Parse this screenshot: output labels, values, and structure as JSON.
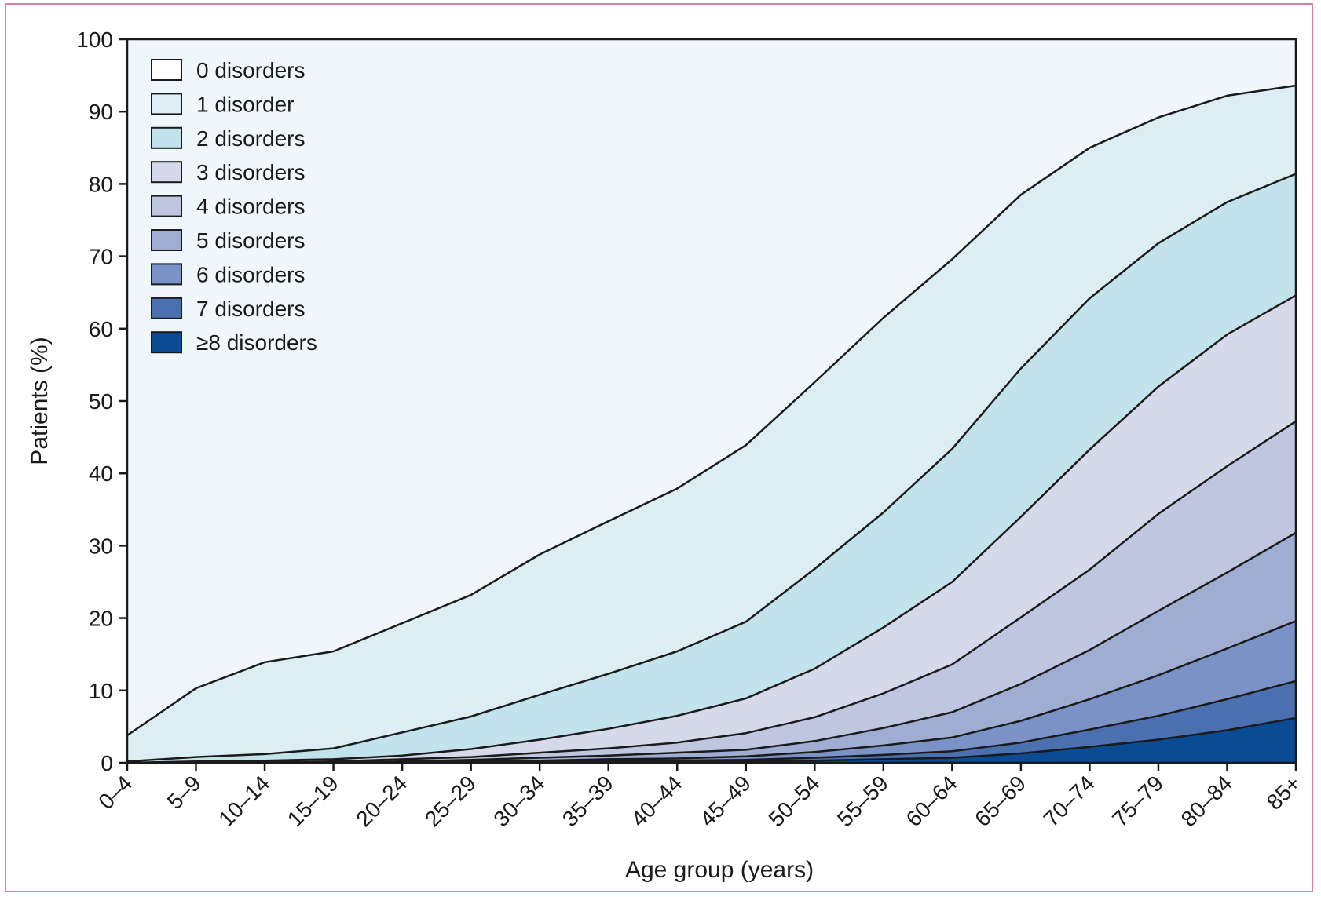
{
  "chart_data": {
    "type": "area",
    "stacked": true,
    "xlabel": "Age group (years)",
    "ylabel": "Patients (%)",
    "ylim": [
      0,
      100
    ],
    "yticks": [
      0,
      10,
      20,
      30,
      40,
      50,
      60,
      70,
      80,
      90,
      100
    ],
    "categories": [
      "0–4",
      "5–9",
      "10–14",
      "15–19",
      "20–24",
      "25–29",
      "30–34",
      "35–39",
      "40–44",
      "45–49",
      "50–54",
      "55–59",
      "60–64",
      "65–69",
      "70–74",
      "75–79",
      "80–84",
      "85+"
    ],
    "legend_position": "top-left",
    "grid": false,
    "legend": [
      "0 disorders",
      "1 disorder",
      "2 disorders",
      "3 disorders",
      "4 disorders",
      "5 disorders",
      "6 disorders",
      "7 disorders",
      "≥8 disorders"
    ],
    "legend_colors": [
      "#ffffff",
      "#dceef4",
      "#c2e2ec",
      "#d6d9ea",
      "#bfc6e0",
      "#9fadd3",
      "#7a92c6",
      "#4a70b0",
      "#0b4b94"
    ],
    "background_color": "#f0f7fa",
    "boundaries": [
      {
        "name": "1 disorder",
        "color": "#dceef4",
        "values": [
          3.8,
          10.3,
          13.9,
          15.4,
          19.3,
          23.2,
          28.8,
          33.4,
          37.9,
          43.9,
          52.6,
          61.5,
          69.6,
          78.5,
          85.0,
          89.2,
          92.2,
          93.6
        ]
      },
      {
        "name": "2 disorders",
        "color": "#c2e2ec",
        "values": [
          0.2,
          0.8,
          1.2,
          2.0,
          4.2,
          6.4,
          9.4,
          12.3,
          15.4,
          19.5,
          26.8,
          34.6,
          43.4,
          54.5,
          64.2,
          71.8,
          77.5,
          81.4
        ]
      },
      {
        "name": "3 disorders",
        "color": "#d6d9ea",
        "values": [
          0.0,
          0.2,
          0.3,
          0.5,
          1.0,
          1.9,
          3.2,
          4.7,
          6.5,
          8.9,
          13.0,
          18.7,
          25.0,
          34.0,
          43.3,
          52.0,
          59.2,
          64.6
        ]
      },
      {
        "name": "4 disorders",
        "color": "#bfc6e0",
        "values": [
          0.0,
          0.05,
          0.1,
          0.2,
          0.5,
          0.8,
          1.4,
          2.0,
          2.8,
          4.1,
          6.3,
          9.6,
          13.6,
          20.1,
          26.7,
          34.4,
          41.0,
          47.2
        ]
      },
      {
        "name": "5 disorders",
        "color": "#9fadd3",
        "values": [
          0.0,
          0.0,
          0.05,
          0.1,
          0.2,
          0.4,
          0.7,
          1.0,
          1.4,
          1.8,
          3.0,
          4.8,
          7.0,
          10.9,
          15.6,
          21.0,
          26.3,
          31.8
        ]
      },
      {
        "name": "6 disorders",
        "color": "#7a92c6",
        "values": [
          0.0,
          0.0,
          0.0,
          0.05,
          0.1,
          0.2,
          0.3,
          0.5,
          0.6,
          0.9,
          1.5,
          2.4,
          3.5,
          5.8,
          8.8,
          12.1,
          15.8,
          19.6
        ]
      },
      {
        "name": "7 disorders",
        "color": "#4a70b0",
        "values": [
          0.0,
          0.0,
          0.0,
          0.0,
          0.05,
          0.1,
          0.15,
          0.25,
          0.3,
          0.4,
          0.7,
          1.1,
          1.6,
          2.8,
          4.6,
          6.5,
          8.8,
          11.3
        ]
      },
      {
        "name": "≥8 disorders",
        "color": "#0b4b94",
        "values": [
          0.0,
          0.0,
          0.0,
          0.0,
          0.0,
          0.05,
          0.05,
          0.1,
          0.1,
          0.2,
          0.3,
          0.5,
          0.7,
          1.3,
          2.2,
          3.2,
          4.5,
          6.2
        ]
      }
    ]
  }
}
